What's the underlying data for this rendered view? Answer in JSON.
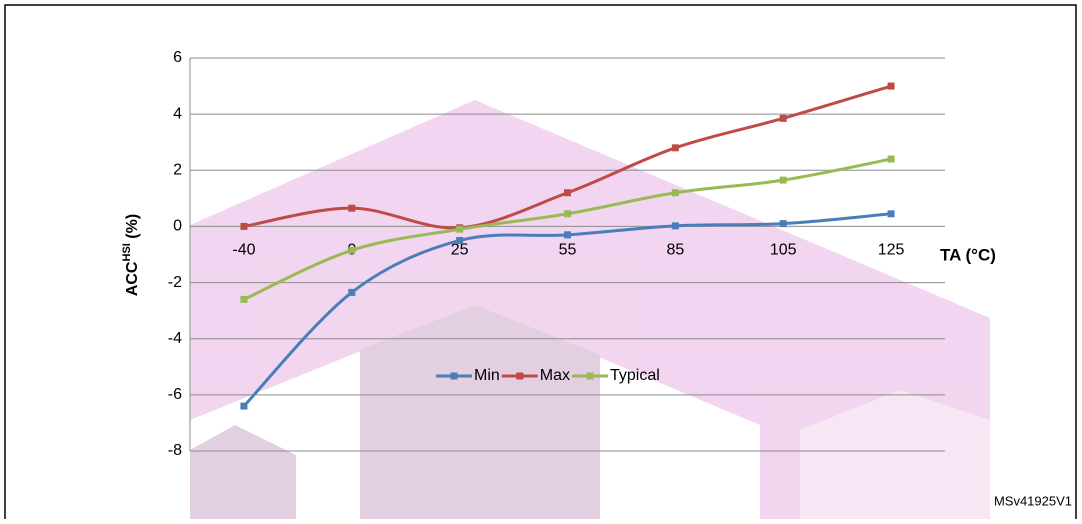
{
  "chart_data": {
    "type": "line",
    "categories": [
      "-40",
      "0",
      "25",
      "55",
      "85",
      "105",
      "125"
    ],
    "series": [
      {
        "name": "Min",
        "color": "#4a7ebb",
        "values": [
          -6.4,
          -2.35,
          -0.5,
          -0.3,
          0.02,
          0.1,
          0.45
        ]
      },
      {
        "name": "Max",
        "color": "#be4b48",
        "values": [
          0,
          0.65,
          -0.05,
          1.2,
          2.8,
          3.85,
          5.0
        ]
      },
      {
        "name": "Typical",
        "color": "#98b954",
        "values": [
          -2.6,
          -0.85,
          -0.1,
          0.45,
          1.2,
          1.65,
          2.4
        ]
      }
    ],
    "ylim": [
      -8,
      6
    ],
    "yticks": [
      -8,
      -6,
      -4,
      -2,
      0,
      2,
      4,
      6
    ],
    "grid": true,
    "smooth": true,
    "x_label": "TA (°C)",
    "y_label": {
      "main": "ACC",
      "sup": "HSI",
      "unit": " (%)"
    },
    "footnote": "MSv41925V1"
  }
}
